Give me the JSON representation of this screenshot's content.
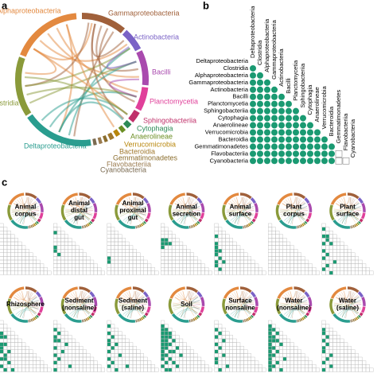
{
  "panel_labels": [
    "a",
    "b",
    "c"
  ],
  "taxa": [
    {
      "name": "Alphaproteobacteria",
      "color": "#e3893f"
    },
    {
      "name": "Gammaproteobacteria",
      "color": "#a0603a"
    },
    {
      "name": "Actinobacteria",
      "color": "#7a62c6"
    },
    {
      "name": "Bacilli",
      "color": "#a94aae"
    },
    {
      "name": "Planctomycetia",
      "color": "#e0409a"
    },
    {
      "name": "Sphingobacteriia",
      "color": "#c0306a"
    },
    {
      "name": "Cytophagia",
      "color": "#2e8b57"
    },
    {
      "name": "Anaerolineae",
      "color": "#6b8e23"
    },
    {
      "name": "Verrucomicrobia",
      "color": "#b8860b"
    },
    {
      "name": "Bacteroidia",
      "color": "#a0782d"
    },
    {
      "name": "Gemmatimonadetes",
      "color": "#8b6d2d"
    },
    {
      "name": "Flavobacteriia",
      "color": "#9a7b4f"
    },
    {
      "name": "Cyanobacteria",
      "color": "#7a6a50"
    },
    {
      "name": "Deltaproteobacteria",
      "color": "#2a9d8f"
    },
    {
      "name": "Clostridia",
      "color": "#8a9a3a"
    }
  ],
  "matrix": {
    "rows": [
      "Deltaproteobacteria",
      "Clostridia",
      "Alphaproteobacteria",
      "Gammaproteobacteria",
      "Actinobacteria",
      "Bacilli",
      "Planctomycetia",
      "Sphingobacteriia",
      "Cytophagia",
      "Anaerolineae",
      "Verrucomicrobia",
      "Bacteroidia",
      "Gemmatimonadetes",
      "Flavobacteriia",
      "Cyanobacteria"
    ],
    "columns": [
      "Deltaproteobacteria",
      "Clostridia",
      "Alphaproteobacteria",
      "Gammaproteobacteria",
      "Actinobacteria",
      "Bacilli",
      "Planctomycetia",
      "Sphingobacteriia",
      "Cytophagia",
      "Anaerolineae",
      "Verrucomicrobia",
      "Bacteroidia",
      "Gemmatimonadetes",
      "Flavobacteriia",
      "Cyanobacteria"
    ],
    "color": "#1a9a72",
    "values": [
      [],
      [
        1
      ],
      [
        1,
        1
      ],
      [
        1,
        1,
        1
      ],
      [
        1,
        1,
        1,
        1
      ],
      [
        1,
        1,
        1,
        1,
        1
      ],
      [
        1,
        1,
        1,
        1,
        1,
        1
      ],
      [
        1,
        1,
        1,
        1,
        1,
        1,
        1
      ],
      [
        1,
        1,
        1,
        1,
        1,
        1,
        1,
        1
      ],
      [
        1,
        1,
        1,
        1,
        1,
        1,
        1,
        1,
        1
      ],
      [
        1,
        1,
        1,
        1,
        1,
        1,
        1,
        1,
        1,
        1
      ],
      [
        1,
        1,
        1,
        1,
        1,
        1,
        1,
        1,
        1,
        1,
        1
      ],
      [
        1,
        1,
        1,
        1,
        1,
        1,
        1,
        1,
        1,
        1,
        1,
        1
      ],
      [
        1,
        1,
        1,
        1,
        1,
        1,
        1,
        1,
        1,
        1,
        1,
        1,
        0
      ],
      [
        1,
        1,
        1,
        1,
        1,
        1,
        1,
        1,
        1,
        1,
        1,
        1,
        0,
        0
      ]
    ]
  },
  "environments": [
    {
      "label_lines": [
        "Animal",
        "corpus"
      ],
      "filled": []
    },
    {
      "label_lines": [
        "Animal",
        "distal",
        "gut"
      ],
      "filled": [
        [
          2,
          0
        ],
        [
          6,
          0
        ],
        [
          7,
          0
        ],
        [
          8,
          1
        ]
      ]
    },
    {
      "label_lines": [
        "Animal",
        "proximal",
        "gut"
      ],
      "filled": [
        [
          9,
          0
        ],
        [
          10,
          0
        ]
      ]
    },
    {
      "label_lines": [
        "Animal",
        "secretion"
      ],
      "filled": [
        [
          4,
          0
        ],
        [
          4,
          1
        ],
        [
          5,
          0
        ],
        [
          5,
          1
        ],
        [
          5,
          2
        ],
        [
          6,
          0
        ]
      ]
    },
    {
      "label_lines": [
        "Animal",
        "surface"
      ],
      "filled": [
        [
          3,
          0
        ],
        [
          5,
          0
        ],
        [
          6,
          0
        ],
        [
          7,
          0
        ],
        [
          7,
          1
        ],
        [
          8,
          0
        ],
        [
          9,
          1
        ],
        [
          10,
          0
        ],
        [
          10,
          2
        ],
        [
          11,
          0
        ],
        [
          12,
          1
        ]
      ]
    },
    {
      "label_lines": [
        "Plant",
        "corpus"
      ],
      "filled": []
    },
    {
      "label_lines": [
        "Plant",
        "surface"
      ],
      "filled": [
        [
          1,
          0
        ],
        [
          3,
          0
        ],
        [
          3,
          1
        ],
        [
          4,
          1
        ],
        [
          5,
          0
        ],
        [
          5,
          2
        ],
        [
          7,
          0
        ],
        [
          8,
          1
        ],
        [
          9,
          0
        ],
        [
          10,
          3
        ],
        [
          11,
          1
        ],
        [
          12,
          0
        ],
        [
          13,
          2
        ]
      ]
    },
    {
      "label_lines": [
        "Rhizosphere"
      ],
      "filled": [
        [
          3,
          0
        ],
        [
          4,
          0
        ],
        [
          4,
          1
        ],
        [
          6,
          0
        ],
        [
          6,
          1
        ],
        [
          7,
          0
        ],
        [
          8,
          0
        ],
        [
          8,
          2
        ],
        [
          9,
          1
        ],
        [
          10,
          0
        ],
        [
          10,
          1
        ],
        [
          11,
          2
        ],
        [
          12,
          0
        ],
        [
          13,
          1
        ],
        [
          13,
          3
        ]
      ]
    },
    {
      "label_lines": [
        "Sediment",
        "(nonsaline)"
      ],
      "filled": [
        [
          2,
          0
        ],
        [
          3,
          1
        ],
        [
          4,
          0
        ],
        [
          5,
          0
        ],
        [
          5,
          1
        ],
        [
          6,
          3
        ],
        [
          7,
          0
        ],
        [
          8,
          2
        ],
        [
          9,
          0
        ],
        [
          10,
          1
        ],
        [
          11,
          0
        ],
        [
          12,
          4
        ],
        [
          13,
          0
        ]
      ]
    },
    {
      "label_lines": [
        "Sediment",
        "(saline)"
      ],
      "filled": [
        [
          1,
          0
        ],
        [
          3,
          0
        ],
        [
          4,
          1
        ],
        [
          5,
          0
        ],
        [
          6,
          0
        ],
        [
          6,
          2
        ],
        [
          7,
          1
        ],
        [
          8,
          0
        ],
        [
          9,
          3
        ],
        [
          10,
          0
        ],
        [
          11,
          1
        ],
        [
          12,
          0
        ],
        [
          12,
          5
        ],
        [
          13,
          2
        ]
      ]
    },
    {
      "label_lines": [
        "Soil"
      ],
      "filled": [
        [
          1,
          0
        ],
        [
          2,
          0
        ],
        [
          2,
          1
        ],
        [
          3,
          0
        ],
        [
          3,
          1
        ],
        [
          3,
          2
        ],
        [
          4,
          0
        ],
        [
          4,
          1
        ],
        [
          4,
          2
        ],
        [
          5,
          0
        ],
        [
          5,
          1
        ],
        [
          5,
          3
        ],
        [
          6,
          0
        ],
        [
          6,
          1
        ],
        [
          6,
          2
        ],
        [
          7,
          0
        ],
        [
          7,
          1
        ],
        [
          7,
          4
        ],
        [
          8,
          0
        ],
        [
          8,
          2
        ],
        [
          8,
          3
        ],
        [
          9,
          0
        ],
        [
          9,
          1
        ],
        [
          9,
          5
        ],
        [
          10,
          0
        ],
        [
          10,
          2
        ],
        [
          11,
          1
        ],
        [
          11,
          3
        ],
        [
          12,
          0
        ],
        [
          12,
          4
        ],
        [
          13,
          1
        ],
        [
          13,
          2
        ]
      ]
    },
    {
      "label_lines": [
        "Surface",
        "nonsaline"
      ],
      "filled": [
        [
          2,
          0
        ],
        [
          3,
          1
        ],
        [
          4,
          0
        ],
        [
          5,
          2
        ],
        [
          6,
          0
        ],
        [
          7,
          1
        ],
        [
          8,
          0
        ],
        [
          9,
          2
        ],
        [
          10,
          0
        ],
        [
          11,
          0
        ],
        [
          12,
          3
        ],
        [
          13,
          1
        ]
      ]
    },
    {
      "label_lines": [
        "Water",
        "(nonsaline)"
      ],
      "filled": [
        [
          1,
          0
        ],
        [
          2,
          0
        ],
        [
          2,
          1
        ],
        [
          3,
          0
        ],
        [
          3,
          2
        ],
        [
          4,
          0
        ],
        [
          4,
          1
        ],
        [
          5,
          0
        ],
        [
          5,
          1
        ],
        [
          5,
          2
        ],
        [
          6,
          0
        ],
        [
          6,
          3
        ],
        [
          7,
          0
        ],
        [
          7,
          1
        ],
        [
          8,
          0
        ],
        [
          8,
          2
        ],
        [
          9,
          0
        ],
        [
          9,
          1
        ],
        [
          10,
          0
        ],
        [
          10,
          4
        ],
        [
          11,
          0
        ],
        [
          11,
          2
        ],
        [
          12,
          0
        ],
        [
          12,
          1
        ],
        [
          13,
          0
        ],
        [
          13,
          3
        ]
      ]
    },
    {
      "label_lines": [
        "Water",
        "(saline)"
      ],
      "filled": [
        [
          2,
          0
        ],
        [
          3,
          0
        ],
        [
          4,
          1
        ],
        [
          5,
          0
        ],
        [
          6,
          1
        ],
        [
          7,
          0
        ],
        [
          8,
          0
        ],
        [
          9,
          2
        ],
        [
          10,
          1
        ],
        [
          11,
          0
        ],
        [
          12,
          2
        ],
        [
          13,
          0
        ]
      ]
    }
  ]
}
